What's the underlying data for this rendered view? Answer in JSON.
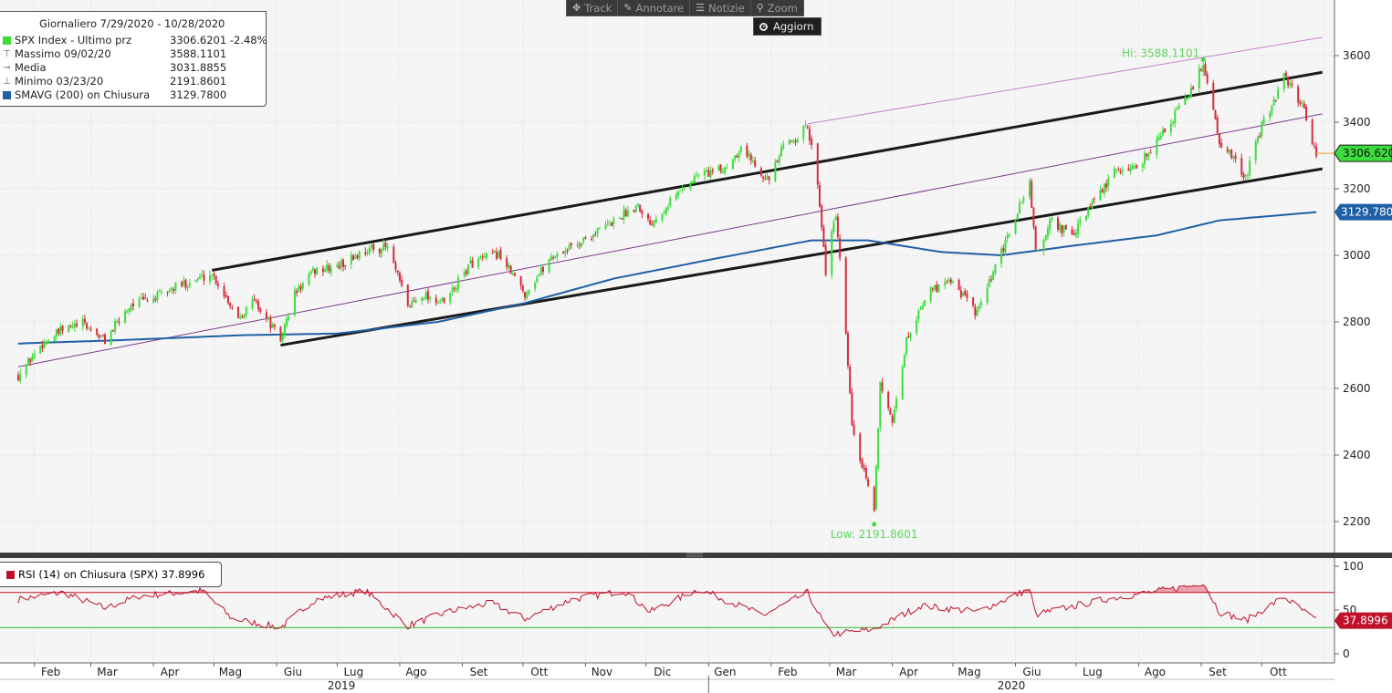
{
  "toolbar": {
    "track": "Track",
    "annotate": "Annotare",
    "news": "Notizie",
    "zoom": "Zoom",
    "refresh": "Aggiorn"
  },
  "legend": {
    "title": "Giornaliero 7/29/2020 - 10/28/2020",
    "rows": [
      {
        "name": "SPX Index - Ultimo prz",
        "value": "3306.6201  -2.48%",
        "color": "#3ddc3d"
      },
      {
        "name": "Massimo 09/02/20",
        "value": "3588.1101"
      },
      {
        "name": "Media",
        "value": "3031.8855"
      },
      {
        "name": "Minimo 03/23/20",
        "value": "2191.8601"
      },
      {
        "name": "SMAVG (200)  on Chiusura",
        "value": "3129.7800",
        "color": "#1f5fa6"
      }
    ]
  },
  "rsi_legend": {
    "label": "RSI (14)  on Chiusura (SPX) 37.8996",
    "color": "#c0102a"
  },
  "annotations": {
    "hi": "Hi: 3588.1101",
    "low": "Low: 2191.8601"
  },
  "chart_data": {
    "type": "candlestick",
    "price_axis": {
      "min": 2100,
      "max": 3700,
      "ticks": [
        2200,
        2400,
        2600,
        2800,
        3000,
        3200,
        3400,
        3600
      ]
    },
    "rsi_axis": {
      "min": 0,
      "max": 100,
      "ticks": [
        0,
        50,
        100
      ],
      "overbought": 70,
      "oversold": 30
    },
    "x_months": [
      "Feb",
      "Mar",
      "Apr",
      "Mag",
      "Giu",
      "Lug",
      "Ago",
      "Set",
      "Ott",
      "Nov",
      "Dic",
      "Gen",
      "Feb",
      "Mar",
      "Apr",
      "Mag",
      "Giu",
      "Lug",
      "Ago",
      "Set",
      "Ott"
    ],
    "years": [
      "2019",
      "2020"
    ],
    "last_price": 3306.62,
    "last_price_label": "3306.6201",
    "sma200_last": 3129.78,
    "sma200_label": "3129.7800",
    "rsi_last": 37.8996,
    "rsi_label": "37.8996",
    "high": 3588.11,
    "low": 2191.86,
    "close_path": [
      [
        "2019-01-24",
        2640
      ],
      [
        "2019-02-05",
        2735
      ],
      [
        "2019-02-15",
        2775
      ],
      [
        "2019-02-25",
        2795
      ],
      [
        "2019-03-08",
        2745
      ],
      [
        "2019-03-21",
        2855
      ],
      [
        "2019-04-01",
        2870
      ],
      [
        "2019-04-12",
        2905
      ],
      [
        "2019-04-30",
        2945
      ],
      [
        "2019-05-13",
        2815
      ],
      [
        "2019-05-21",
        2865
      ],
      [
        "2019-06-03",
        2745
      ],
      [
        "2019-06-10",
        2885
      ],
      [
        "2019-06-20",
        2955
      ],
      [
        "2019-07-01",
        2965
      ],
      [
        "2019-07-15",
        3015
      ],
      [
        "2019-07-26",
        3025
      ],
      [
        "2019-08-05",
        2845
      ],
      [
        "2019-08-12",
        2885
      ],
      [
        "2019-08-23",
        2855
      ],
      [
        "2019-09-05",
        2975
      ],
      [
        "2019-09-19",
        3005
      ],
      [
        "2019-10-02",
        2885
      ],
      [
        "2019-10-15",
        2995
      ],
      [
        "2019-10-31",
        3045
      ],
      [
        "2019-11-13",
        3095
      ],
      [
        "2019-11-27",
        3155
      ],
      [
        "2019-12-03",
        3095
      ],
      [
        "2019-12-13",
        3165
      ],
      [
        "2019-12-27",
        3245
      ],
      [
        "2020-01-08",
        3255
      ],
      [
        "2020-01-17",
        3325
      ],
      [
        "2020-01-31",
        3225
      ],
      [
        "2020-02-07",
        3325
      ],
      [
        "2020-02-19",
        3385
      ],
      [
        "2020-02-24",
        3225
      ],
      [
        "2020-02-28",
        2955
      ],
      [
        "2020-03-04",
        3125
      ],
      [
        "2020-03-09",
        2755
      ],
      [
        "2020-03-12",
        2485
      ],
      [
        "2020-03-16",
        2385
      ],
      [
        "2020-03-23",
        2235
      ],
      [
        "2020-03-26",
        2625
      ],
      [
        "2020-04-01",
        2485
      ],
      [
        "2020-04-08",
        2745
      ],
      [
        "2020-04-17",
        2875
      ],
      [
        "2020-04-29",
        2935
      ],
      [
        "2020-05-13",
        2825
      ],
      [
        "2020-05-27",
        3035
      ],
      [
        "2020-06-08",
        3225
      ],
      [
        "2020-06-11",
        3005
      ],
      [
        "2020-06-19",
        3105
      ],
      [
        "2020-06-29",
        3055
      ],
      [
        "2020-07-09",
        3155
      ],
      [
        "2020-07-21",
        3255
      ],
      [
        "2020-07-31",
        3265
      ],
      [
        "2020-08-14",
        3375
      ],
      [
        "2020-08-28",
        3505
      ],
      [
        "2020-09-02",
        3580
      ],
      [
        "2020-09-10",
        3345
      ],
      [
        "2020-09-23",
        3235
      ],
      [
        "2020-10-01",
        3385
      ],
      [
        "2020-10-12",
        3535
      ],
      [
        "2020-10-21",
        3455
      ],
      [
        "2020-10-28",
        3306.62
      ]
    ],
    "sma200_path": [
      [
        "2019-01-24",
        2735
      ],
      [
        "2019-03-15",
        2745
      ],
      [
        "2019-05-15",
        2760
      ],
      [
        "2019-07-01",
        2765
      ],
      [
        "2019-08-20",
        2800
      ],
      [
        "2019-10-01",
        2855
      ],
      [
        "2019-11-15",
        2930
      ],
      [
        "2019-12-31",
        2985
      ],
      [
        "2020-02-21",
        3045
      ],
      [
        "2020-03-20",
        3045
      ],
      [
        "2020-04-25",
        3010
      ],
      [
        "2020-05-25",
        3000
      ],
      [
        "2020-07-01",
        3030
      ],
      [
        "2020-08-10",
        3060
      ],
      [
        "2020-09-10",
        3105
      ],
      [
        "2020-10-28",
        3129.78
      ]
    ],
    "rsi_path": [
      [
        "2019-01-24",
        62
      ],
      [
        "2019-02-15",
        70
      ],
      [
        "2019-03-08",
        52
      ],
      [
        "2019-03-25",
        66
      ],
      [
        "2019-04-25",
        72
      ],
      [
        "2019-05-10",
        40
      ],
      [
        "2019-06-03",
        30
      ],
      [
        "2019-06-20",
        62
      ],
      [
        "2019-07-15",
        72
      ],
      [
        "2019-08-05",
        32
      ],
      [
        "2019-08-25",
        48
      ],
      [
        "2019-09-15",
        58
      ],
      [
        "2019-10-02",
        40
      ],
      [
        "2019-10-25",
        62
      ],
      [
        "2019-11-20",
        72
      ],
      [
        "2019-12-03",
        48
      ],
      [
        "2019-12-27",
        74
      ],
      [
        "2020-01-28",
        44
      ],
      [
        "2020-02-19",
        70
      ],
      [
        "2020-03-01",
        22
      ],
      [
        "2020-03-23",
        28
      ],
      [
        "2020-04-15",
        55
      ],
      [
        "2020-05-13",
        48
      ],
      [
        "2020-06-08",
        74
      ],
      [
        "2020-06-11",
        45
      ],
      [
        "2020-07-15",
        62
      ],
      [
        "2020-08-28",
        78
      ],
      [
        "2020-09-02",
        82
      ],
      [
        "2020-09-10",
        48
      ],
      [
        "2020-09-23",
        38
      ],
      [
        "2020-10-12",
        65
      ],
      [
        "2020-10-28",
        37.9
      ]
    ],
    "trendlines": [
      {
        "name": "upper-channel",
        "from": [
          "2019-04-30",
          2955
        ],
        "to": [
          "2020-10-31",
          3550
        ],
        "color": "#1a1a1a"
      },
      {
        "name": "lower-channel",
        "from": [
          "2019-06-03",
          2730
        ],
        "to": [
          "2020-10-31",
          3260
        ],
        "color": "#1a1a1a"
      },
      {
        "name": "mid-channel",
        "from": [
          "2019-01-24",
          2665
        ],
        "to": [
          "2020-10-31",
          3425
        ],
        "color": "#7a3a8a"
      },
      {
        "name": "top-channel",
        "from": [
          "2020-02-19",
          3395
        ],
        "to": [
          "2020-10-31",
          3655
        ],
        "color": "#c97fd0"
      }
    ],
    "colors": {
      "up": "#3ddc3d",
      "down": "#d62b3a",
      "sma": "#1f5fa6",
      "rsi": "#c0102a",
      "rsi_fill": "#e9a4ac",
      "oversold": "#2ab52a",
      "overbought": "#c0102a"
    }
  }
}
